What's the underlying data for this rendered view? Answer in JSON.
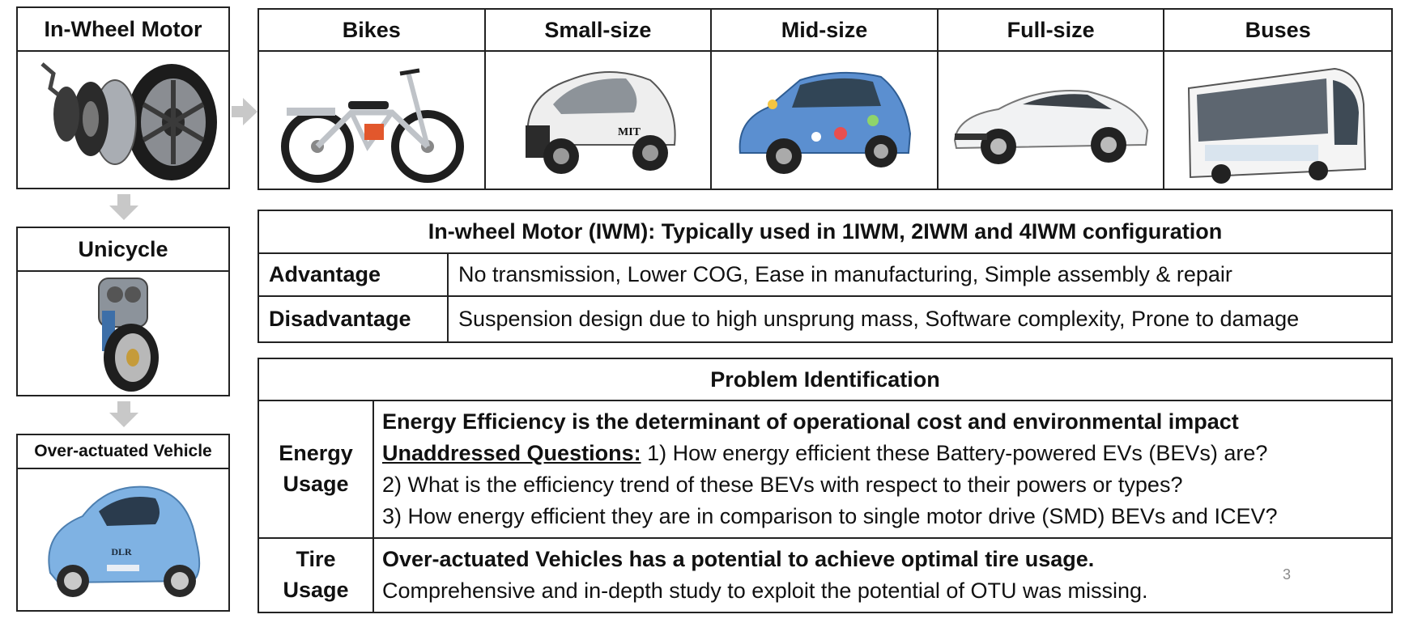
{
  "left": {
    "in_wheel_motor": {
      "title": "In-Wheel Motor"
    },
    "unicycle": {
      "title": "Unicycle"
    },
    "over_actuated": {
      "title": "Over-actuated Vehicle",
      "car_text": "DLR"
    }
  },
  "vehicles": [
    {
      "label": "Bikes"
    },
    {
      "label": "Small-size",
      "car_text": "MIT"
    },
    {
      "label": "Mid-size"
    },
    {
      "label": "Full-size"
    },
    {
      "label": "Buses"
    }
  ],
  "iwm_table": {
    "title": "In-wheel Motor (IWM): Typically used in 1IWM, 2IWM and 4IWM configuration",
    "rows": [
      {
        "label": "Advantage",
        "value": "No transmission, Lower COG, Ease in manufacturing, Simple assembly & repair"
      },
      {
        "label": "Disadvantage",
        "value": "Suspension design due to high unsprung mass, Software complexity, Prone to damage"
      }
    ]
  },
  "problem": {
    "title": "Problem Identification",
    "energy": {
      "label_1": "Energy",
      "label_2": "Usage",
      "headline": "Energy Efficiency is the determinant of operational cost and  environmental impact",
      "questions_label": "Unaddressed Questions:",
      "q1": " 1) How energy efficient these Battery-powered EVs (BEVs) are?",
      "q2": "2) What is the efficiency trend of these BEVs with respect to their powers or types?",
      "q3": "3) How energy efficient they are in comparison to single motor drive (SMD) BEVs and ICEV?"
    },
    "tire": {
      "label_1": "Tire",
      "label_2": "Usage",
      "headline": "Over-actuated Vehicles has a potential to achieve optimal tire usage.",
      "detail": "Comprehensive and in-depth study to exploit the potential of OTU was missing."
    }
  },
  "page_number": "3"
}
